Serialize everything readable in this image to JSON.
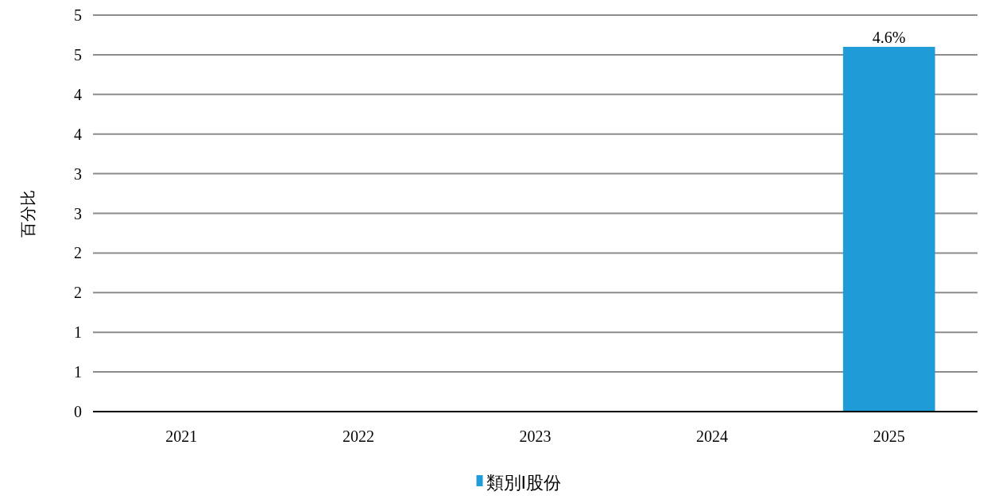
{
  "chart_data": {
    "type": "bar",
    "ylabel": "百分比",
    "categories": [
      "2021",
      "2022",
      "2023",
      "2024",
      "2025"
    ],
    "series": [
      {
        "name": "類別I股份",
        "color": "#1f9bd7",
        "values": [
          null,
          null,
          null,
          null,
          4.6
        ],
        "value_labels": [
          null,
          null,
          null,
          null,
          "4.6%"
        ]
      }
    ],
    "ylim": [
      0,
      5
    ],
    "yticks": [
      0,
      {
        "value": 0.5,
        "label": "1"
      },
      1,
      {
        "value": 1.5,
        "label": "2"
      },
      2,
      {
        "value": 2.5,
        "label": "3"
      },
      3,
      {
        "value": 3.5,
        "label": "4"
      },
      4,
      {
        "value": 4.5,
        "label": "5"
      },
      5
    ],
    "grid": "y",
    "legend": "bottom"
  }
}
